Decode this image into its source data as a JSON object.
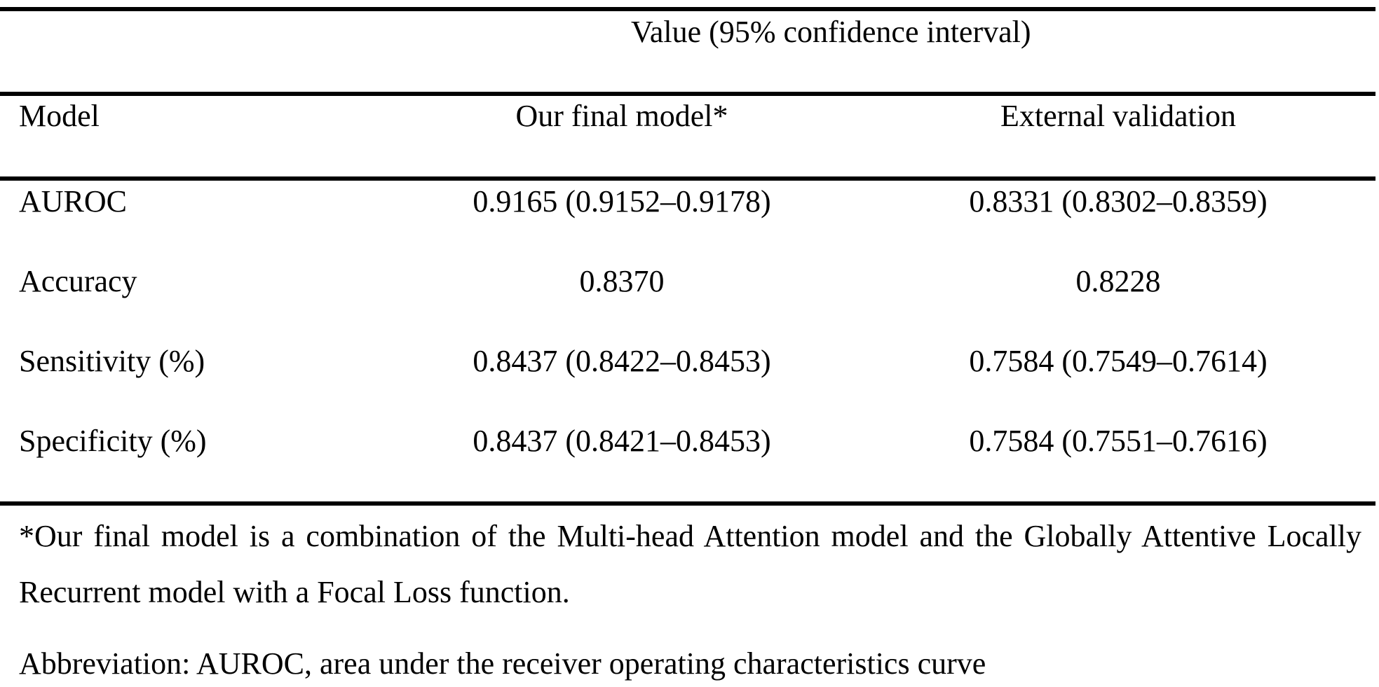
{
  "table": {
    "spanning_header": "Value (95% confidence interval)",
    "columns": [
      "Model",
      "Our final model*",
      "External validation"
    ],
    "rows": [
      {
        "metric": "AUROC",
        "ours": "0.9165 (0.9152–0.9178)",
        "external": "0.8331 (0.8302–0.8359)"
      },
      {
        "metric": "Accuracy",
        "ours": "0.8370",
        "external": "0.8228"
      },
      {
        "metric": "Sensitivity (%)",
        "ours": "0.8437 (0.8422–0.8453)",
        "external": "0.7584 (0.7549–0.7614)"
      },
      {
        "metric": "Specificity (%)",
        "ours": "0.8437 (0.8421–0.8453)",
        "external": "0.7584 (0.7551–0.7616)"
      }
    ]
  },
  "footnote": "*Our final model is a combination of the Multi-head Attention model and the Globally Attentive Locally Recurrent model with a Focal Loss function.",
  "abbreviation": "Abbreviation: AUROC, area under the receiver operating characteristics curve"
}
